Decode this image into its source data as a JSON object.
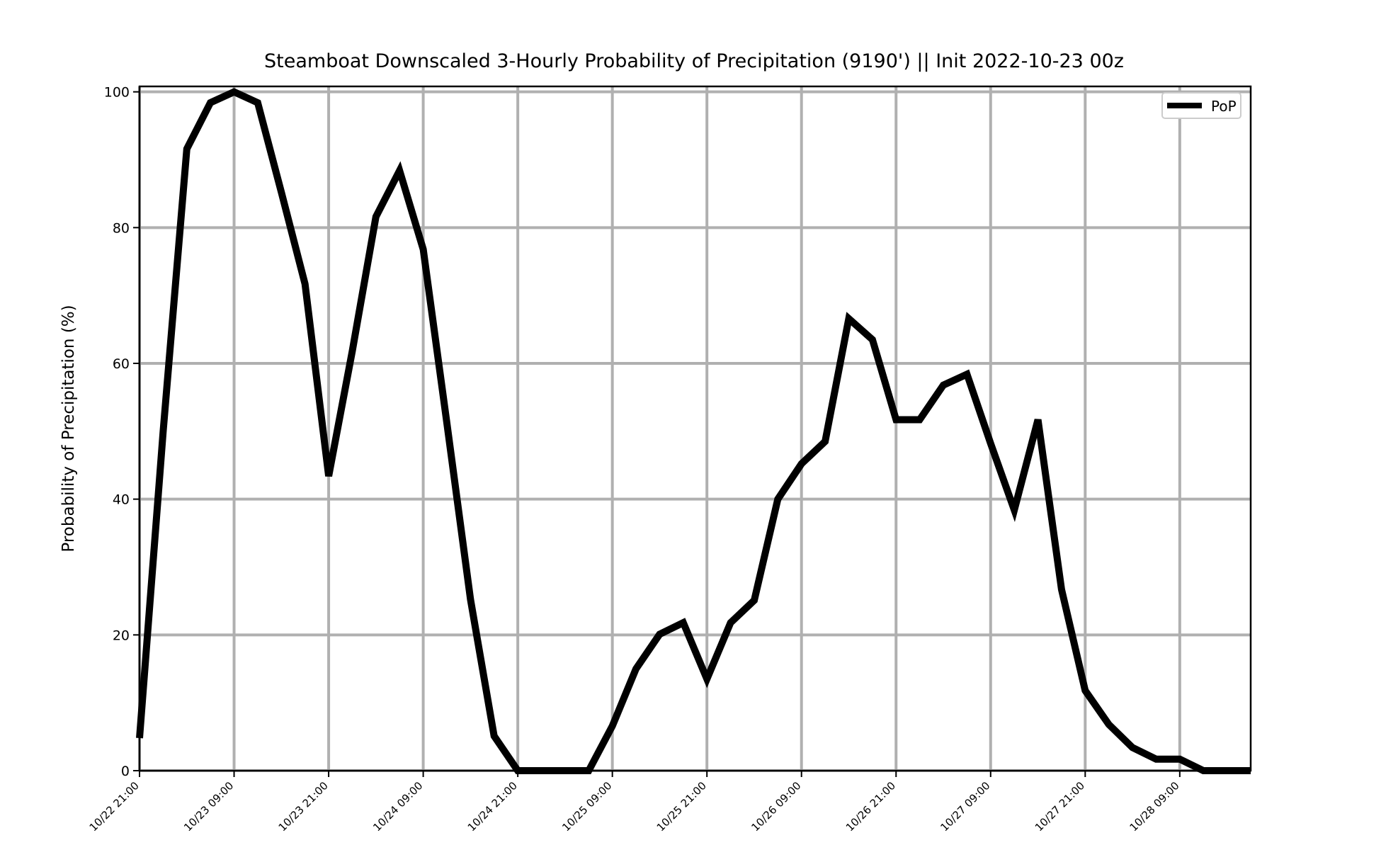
{
  "chart_data": {
    "type": "line",
    "title": "Steamboat Downscaled 3-Hourly Probability of Precipitation (9190') || Init 2022-10-23 00z",
    "xlabel": "",
    "ylabel": "Probability of Precipitation (%)",
    "x_tick_labels": [
      "10/22 21:00",
      "10/23 09:00",
      "10/23 21:00",
      "10/24 09:00",
      "10/24 21:00",
      "10/25 09:00",
      "10/25 21:00",
      "10/26 09:00",
      "10/26 21:00",
      "10/27 09:00",
      "10/27 21:00",
      "10/28 09:00"
    ],
    "x_tick_hours": [
      0,
      12,
      24,
      36,
      48,
      60,
      72,
      84,
      96,
      108,
      120,
      132
    ],
    "xlim_hours": [
      0,
      141
    ],
    "x_unit": "hours after 10/22 21:00",
    "y_ticks": [
      0,
      20,
      40,
      60,
      80,
      100
    ],
    "ylim": [
      0,
      100.8
    ],
    "grid": true,
    "legend_position": "top-right",
    "series": [
      {
        "name": "PoP",
        "color": "#000000",
        "x_hours": [
          0,
          3,
          6,
          9,
          12,
          15,
          18,
          21,
          24,
          27,
          30,
          33,
          36,
          39,
          42,
          45,
          48,
          51,
          54,
          57,
          60,
          63,
          66,
          69,
          72,
          75,
          78,
          81,
          84,
          87,
          90,
          93,
          96,
          99,
          102,
          105,
          108,
          111,
          114,
          117,
          120,
          123,
          126,
          129,
          132,
          135,
          138,
          141
        ],
        "values": [
          4.8,
          50,
          91.6,
          98.4,
          100,
          98.4,
          85.2,
          71.7,
          43.4,
          61.8,
          81.6,
          88.4,
          76.8,
          51.2,
          25.2,
          5.1,
          0,
          0,
          0,
          0,
          6.6,
          15,
          20.1,
          21.8,
          13.5,
          21.8,
          25.1,
          40,
          45.2,
          48.5,
          66.6,
          63.5,
          51.7,
          51.7,
          56.8,
          58.4,
          48.2,
          38.4,
          51.7,
          26.7,
          11.8,
          6.8,
          3.4,
          1.7,
          1.7,
          0,
          0,
          0
        ]
      }
    ]
  }
}
